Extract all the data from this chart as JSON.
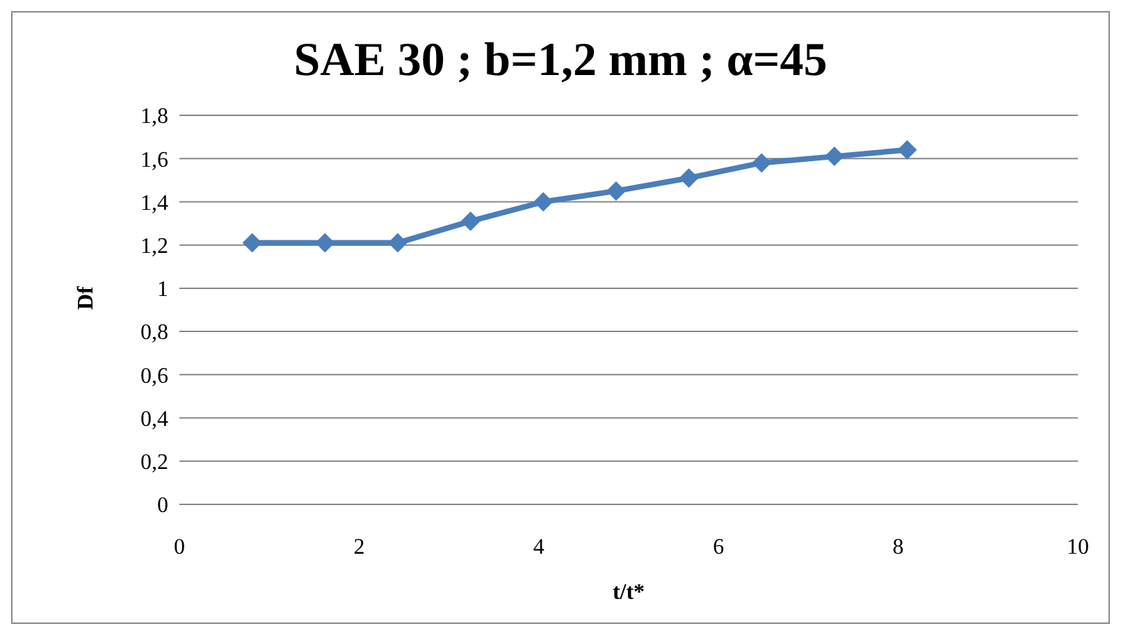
{
  "chart_data": {
    "type": "line",
    "title": "SAE 30 ; b=1,2 mm ; α=45",
    "xlabel": "t/t*",
    "ylabel": "Df",
    "x": [
      0.81,
      1.62,
      2.43,
      3.24,
      4.05,
      4.86,
      5.67,
      6.48,
      7.29,
      8.1
    ],
    "series": [
      {
        "color": "#4a7ebb",
        "values": [
          1.21,
          1.21,
          1.21,
          1.31,
          1.4,
          1.45,
          1.51,
          1.58,
          1.61,
          1.64
        ]
      }
    ],
    "xlim": [
      0,
      10
    ],
    "xticks": [
      0,
      2,
      4,
      6,
      8,
      10
    ],
    "ylim": [
      0,
      1.8
    ],
    "yticks": [
      0,
      {
        "value": 0.2,
        "label": "0,2"
      },
      {
        "value": 0.4,
        "label": "0,4"
      },
      {
        "value": 0.6,
        "label": "0,6"
      },
      {
        "value": 0.8,
        "label": "0,8"
      },
      1,
      {
        "value": 1.2,
        "label": "1,2"
      },
      {
        "value": 1.4,
        "label": "1,4"
      },
      {
        "value": 1.6,
        "label": "1,6"
      },
      {
        "value": 1.8,
        "label": "1,8"
      }
    ],
    "grid": "y",
    "marker": "diamond",
    "line_style": "solid",
    "legend": false
  }
}
